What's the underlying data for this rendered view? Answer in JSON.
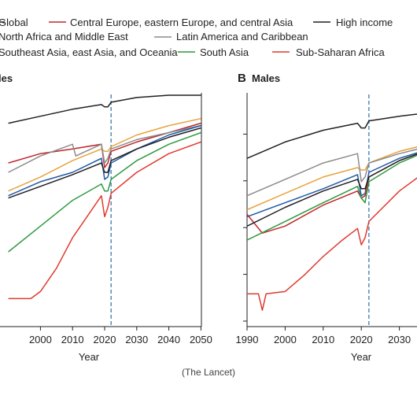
{
  "legend": [
    {
      "name": "Global",
      "color": "#231f20"
    },
    {
      "name": "Central Europe, eastern Europe, and central Asia",
      "color": "#c0272d"
    },
    {
      "name": "High income",
      "color": "#231f20"
    },
    {
      "name": "North Africa and Middle East",
      "color": "#1f5aa8"
    },
    {
      "name": "Latin America and Caribbean",
      "color": "#8c8c8c"
    },
    {
      "name": "Southeast Asia, east Asia, and Oceania",
      "color": "#e8a33d"
    },
    {
      "name": "South Asia",
      "color": "#2e9a3f"
    },
    {
      "name": "Sub-Saharan Africa",
      "color": "#e03a2f"
    }
  ],
  "legend_visible_text": [
    "Global",
    "Central Europe, eastern Europe, and central Asia",
    "High income",
    "North Africa and Middle East",
    "Latin America and Caribbean",
    "Southeast Asia, east Asia, and Oceania",
    "South Asia",
    "Sub-Saharan Africa"
  ],
  "source": "(The Lancet)",
  "chart_data": [
    {
      "type": "line",
      "panel_title": "les",
      "xlabel": "Year",
      "xlim": [
        1990,
        2050
      ],
      "ylim": [
        0,
        1
      ],
      "x_ticks": [
        2000,
        2010,
        2020,
        2030,
        2040,
        2050
      ],
      "reference_x": 2022,
      "series": [
        {
          "name": "High income",
          "color": "#231f20",
          "x": [
            1990,
            2000,
            2010,
            2019,
            2020,
            2021,
            2022,
            2030,
            2040,
            2050
          ],
          "y": [
            0.87,
            0.9,
            0.93,
            0.95,
            0.94,
            0.94,
            0.96,
            0.98,
            0.99,
            0.99
          ]
        },
        {
          "name": "Southeast Asia, east Asia, and Oceania",
          "color": "#e8a33d",
          "x": [
            1990,
            2000,
            2010,
            2019,
            2020,
            2021,
            2022,
            2030,
            2040,
            2050
          ],
          "y": [
            0.58,
            0.64,
            0.71,
            0.76,
            0.75,
            0.75,
            0.77,
            0.82,
            0.86,
            0.89
          ]
        },
        {
          "name": "Central Europe, eastern Europe, and central Asia",
          "color": "#c0272d",
          "x": [
            1990,
            2000,
            2010,
            2019,
            2020,
            2021,
            2022,
            2030,
            2040,
            2050
          ],
          "y": [
            0.7,
            0.74,
            0.76,
            0.78,
            0.68,
            0.7,
            0.75,
            0.79,
            0.83,
            0.87
          ]
        },
        {
          "name": "Latin America and Caribbean",
          "color": "#8c8c8c",
          "x": [
            1990,
            2000,
            2010,
            2011,
            2019,
            2020,
            2021,
            2022,
            2030,
            2040,
            2050
          ],
          "y": [
            0.66,
            0.73,
            0.78,
            0.73,
            0.78,
            0.7,
            0.72,
            0.76,
            0.8,
            0.83,
            0.86
          ]
        },
        {
          "name": "North Africa and Middle East",
          "color": "#1f5aa8",
          "x": [
            1990,
            2000,
            2010,
            2019,
            2020,
            2021,
            2022,
            2030,
            2040,
            2050
          ],
          "y": [
            0.56,
            0.62,
            0.66,
            0.72,
            0.63,
            0.64,
            0.7,
            0.76,
            0.82,
            0.86
          ]
        },
        {
          "name": "Global",
          "color": "#231f20",
          "x": [
            1990,
            2000,
            2010,
            2019,
            2020,
            2021,
            2022,
            2030,
            2040,
            2050
          ],
          "y": [
            0.55,
            0.6,
            0.65,
            0.7,
            0.66,
            0.66,
            0.71,
            0.76,
            0.81,
            0.85
          ]
        },
        {
          "name": "South Asia",
          "color": "#2e9a3f",
          "x": [
            1990,
            2000,
            2010,
            2019,
            2020,
            2021,
            2022,
            2030,
            2040,
            2050
          ],
          "y": [
            0.32,
            0.43,
            0.54,
            0.61,
            0.58,
            0.58,
            0.63,
            0.71,
            0.78,
            0.83
          ]
        },
        {
          "name": "Sub-Saharan Africa",
          "color": "#e03a2f",
          "x": [
            1990,
            1997,
            2000,
            2005,
            2010,
            2015,
            2019,
            2020,
            2021,
            2022,
            2030,
            2040,
            2050
          ],
          "y": [
            0.12,
            0.12,
            0.15,
            0.25,
            0.38,
            0.48,
            0.56,
            0.47,
            0.51,
            0.57,
            0.66,
            0.74,
            0.79
          ]
        }
      ]
    },
    {
      "type": "line",
      "panel_tag": "B",
      "panel_title": "Males",
      "xlabel": "Year",
      "xlim": [
        1990,
        2050
      ],
      "ylim": [
        0,
        1
      ],
      "x_ticks": [
        1990,
        2000,
        2010,
        2020,
        2030
      ],
      "reference_x": 2022,
      "series": [
        {
          "name": "High income",
          "color": "#231f20",
          "x": [
            1990,
            2000,
            2010,
            2019,
            2020,
            2021,
            2022,
            2030,
            2040,
            2050
          ],
          "y": [
            0.72,
            0.79,
            0.84,
            0.87,
            0.85,
            0.85,
            0.88,
            0.9,
            0.92,
            0.93
          ]
        },
        {
          "name": "Southeast Asia, east Asia, and Oceania",
          "color": "#e8a33d",
          "x": [
            1990,
            2000,
            2010,
            2019,
            2020,
            2021,
            2022,
            2030,
            2040,
            2050
          ],
          "y": [
            0.5,
            0.57,
            0.64,
            0.68,
            0.67,
            0.67,
            0.7,
            0.75,
            0.79,
            0.82
          ]
        },
        {
          "name": "Latin America and Caribbean",
          "color": "#8c8c8c",
          "x": [
            1990,
            2000,
            2010,
            2019,
            2020,
            2021,
            2022,
            2030,
            2040,
            2050
          ],
          "y": [
            0.56,
            0.63,
            0.7,
            0.74,
            0.62,
            0.64,
            0.7,
            0.74,
            0.78,
            0.81
          ]
        },
        {
          "name": "North Africa and Middle East",
          "color": "#1f5aa8",
          "x": [
            1990,
            2000,
            2010,
            2019,
            2020,
            2021,
            2022,
            2030,
            2040,
            2050
          ],
          "y": [
            0.47,
            0.53,
            0.59,
            0.65,
            0.56,
            0.57,
            0.66,
            0.72,
            0.77,
            0.81
          ]
        },
        {
          "name": "Central Europe, eastern Europe, and central Asia",
          "color": "#c0272d",
          "x": [
            1990,
            1994,
            2000,
            2010,
            2019,
            2020,
            2021,
            2022,
            2030,
            2040,
            2050
          ],
          "y": [
            0.48,
            0.4,
            0.43,
            0.52,
            0.58,
            0.55,
            0.56,
            0.64,
            0.71,
            0.77,
            0.81
          ]
        },
        {
          "name": "South Asia",
          "color": "#2e9a3f",
          "x": [
            1990,
            2000,
            2010,
            2019,
            2020,
            2021,
            2022,
            2030,
            2040,
            2050
          ],
          "y": [
            0.37,
            0.45,
            0.53,
            0.6,
            0.55,
            0.53,
            0.62,
            0.7,
            0.77,
            0.81
          ]
        },
        {
          "name": "Global",
          "color": "#231f20",
          "x": [
            1990,
            2000,
            2010,
            2019,
            2020,
            2021,
            2022,
            2030,
            2040,
            2050
          ],
          "y": [
            0.43,
            0.51,
            0.58,
            0.63,
            0.59,
            0.59,
            0.64,
            0.71,
            0.77,
            0.81
          ]
        },
        {
          "name": "Sub-Saharan Africa",
          "color": "#e03a2f",
          "x": [
            1990,
            1993,
            1994,
            1995,
            2000,
            2005,
            2010,
            2015,
            2019,
            2020,
            2021,
            2022,
            2030,
            2040,
            2050
          ],
          "y": [
            0.14,
            0.14,
            0.07,
            0.14,
            0.15,
            0.22,
            0.3,
            0.37,
            0.42,
            0.35,
            0.38,
            0.45,
            0.58,
            0.7,
            0.77
          ]
        }
      ]
    }
  ]
}
